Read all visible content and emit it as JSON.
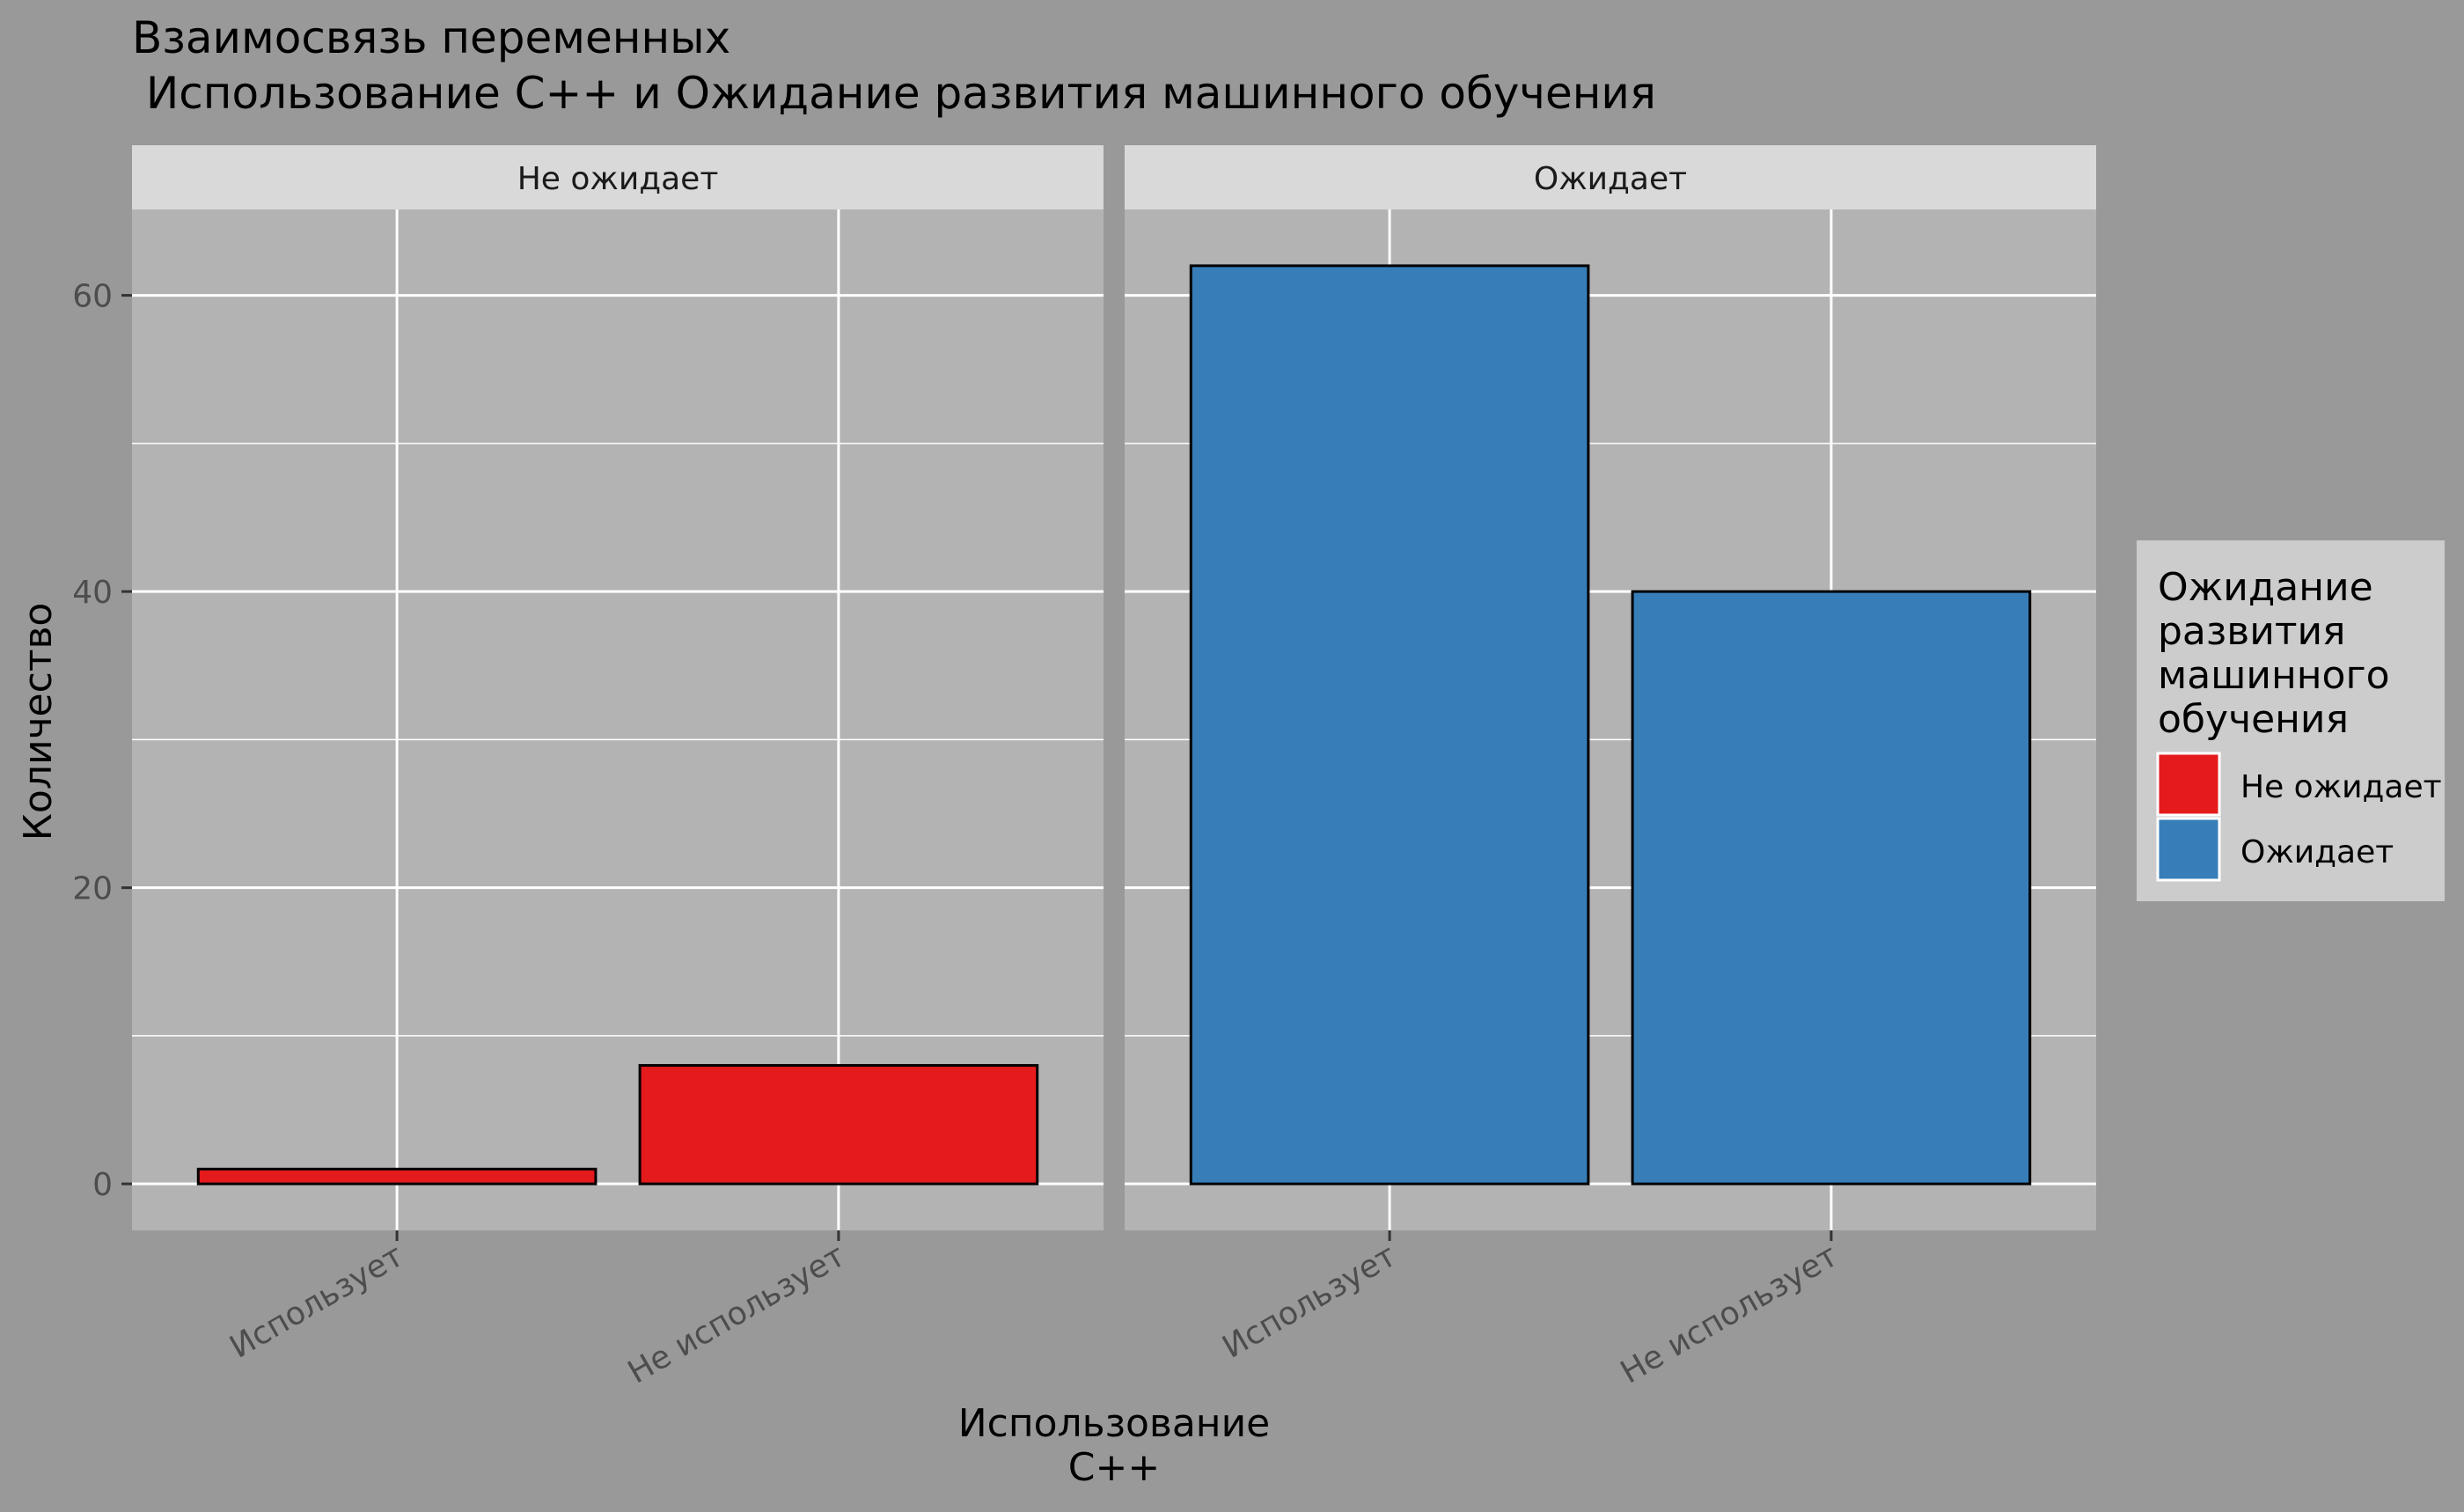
{
  "chart_data": {
    "type": "bar",
    "title_line1": "Взаимосвязь переменных",
    "title_line2": " Использование C++ и Ожидание развития машинного обучения",
    "xlabel_line1": "Использование",
    "xlabel_line2": "C++",
    "ylabel": "Количество",
    "ylim": [
      -3.14,
      65.8
    ],
    "yticks": [
      0,
      20,
      40,
      60
    ],
    "categories": [
      "Использует",
      "Не использует"
    ],
    "facets": [
      {
        "label": "Не ожидает",
        "series": "Не ожидает",
        "values": [
          1,
          8
        ]
      },
      {
        "label": "Ожидает",
        "series": "Ожидает",
        "values": [
          62,
          40
        ]
      }
    ],
    "legend": {
      "title_lines": [
        "Ожидание",
        "развития",
        "машинного",
        "обучения"
      ],
      "position": "right",
      "items": [
        {
          "label": "Не ожидает",
          "color": "#E41A1C"
        },
        {
          "label": "Ожидает",
          "color": "#377EB8"
        }
      ]
    },
    "grid": true,
    "colors": {
      "background": "#999999",
      "panel": "#B3B3B3",
      "strip": "#D9D9D9",
      "legend_bg": "#CCCCCC",
      "grid": "#FFFFFF"
    }
  }
}
